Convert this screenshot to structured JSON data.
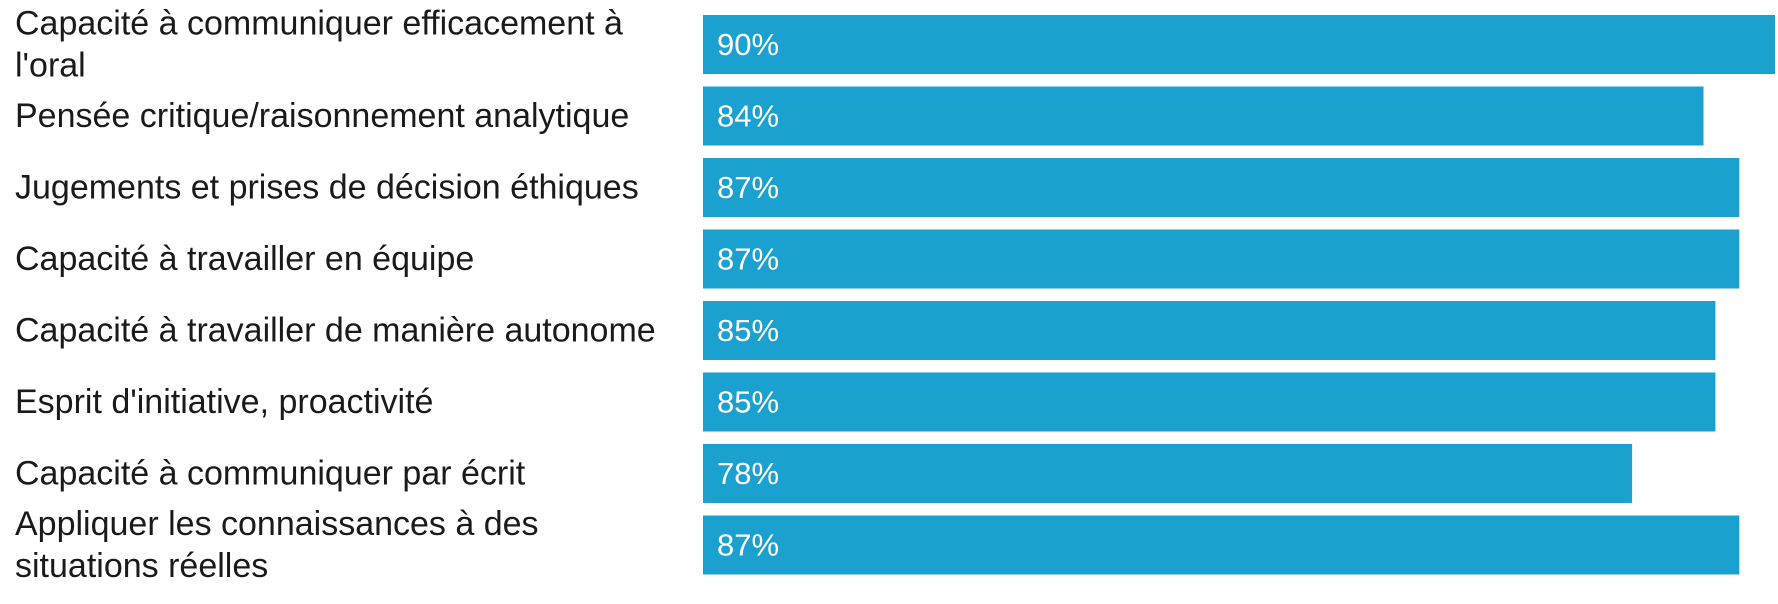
{
  "chart_data": {
    "type": "bar",
    "orientation": "horizontal",
    "title": "",
    "xlabel": "",
    "ylabel": "",
    "grid": false,
    "legend": "none",
    "categories": [
      [
        "Capacité à communiquer efficacement à",
        "l'oral"
      ],
      [
        "Pensée critique/raisonnement analytique"
      ],
      [
        "Jugements et prises de décision éthiques"
      ],
      [
        "Capacité à travailler en équipe"
      ],
      [
        "Capacité à travailler de manière autonome"
      ],
      [
        "Esprit d'initiative, proactivité"
      ],
      [
        "Capacité à communiquer par écrit"
      ],
      [
        "Appliquer les connaissances à des",
        "situations réelles"
      ]
    ],
    "values": [
      90,
      84,
      87,
      87,
      85,
      85,
      78,
      87
    ],
    "value_labels": [
      "90%",
      "84%",
      "87%",
      "87%",
      "85%",
      "85%",
      "78%",
      "87%"
    ],
    "xlim": [
      0,
      90
    ],
    "bar_color": "#1ba1d0",
    "value_label_color": "#ffffff"
  }
}
